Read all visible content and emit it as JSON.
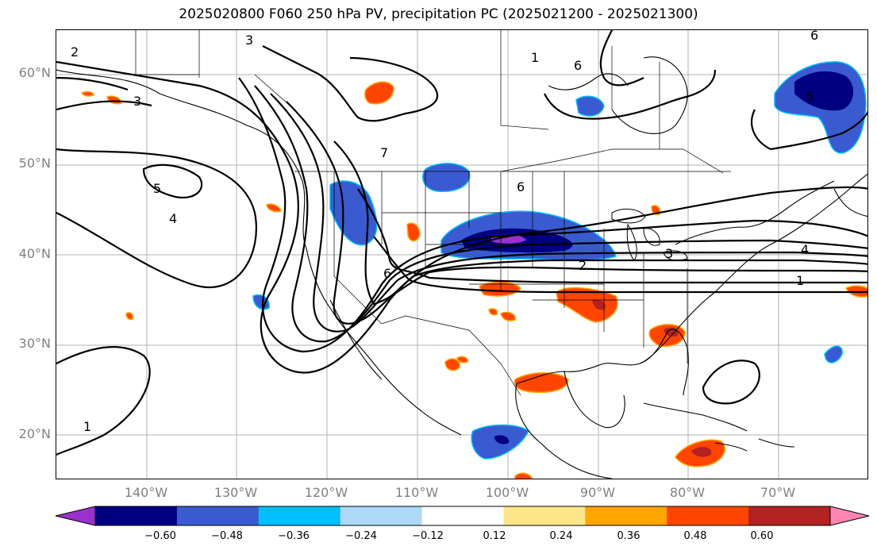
{
  "title": "2025020800 F060 250 hPa PV, precipitation PC (2025021200 - 2025021300)",
  "lat_labels": [
    "60°N",
    "50°N",
    "40°N",
    "30°N",
    "20°N"
  ],
  "lon_labels": [
    "140°W",
    "130°W",
    "120°W",
    "110°W",
    "100°W",
    "90°W",
    "80°W",
    "70°W"
  ],
  "contour_labels": [
    "1",
    "2",
    "3",
    "4",
    "5",
    "6",
    "7"
  ],
  "colorbar": {
    "ticks": [
      "−0.60",
      "−0.48",
      "−0.36",
      "−0.24",
      "−0.12",
      "0.12",
      "0.24",
      "0.36",
      "0.48",
      "0.60"
    ],
    "colors": [
      "#9932cc",
      "#000080",
      "#3a5bcf",
      "#00bfff",
      "#add8f7",
      "#ffffff",
      "#fde68a",
      "#ffa500",
      "#ff4500",
      "#b22222",
      "#ff85b3"
    ]
  }
}
